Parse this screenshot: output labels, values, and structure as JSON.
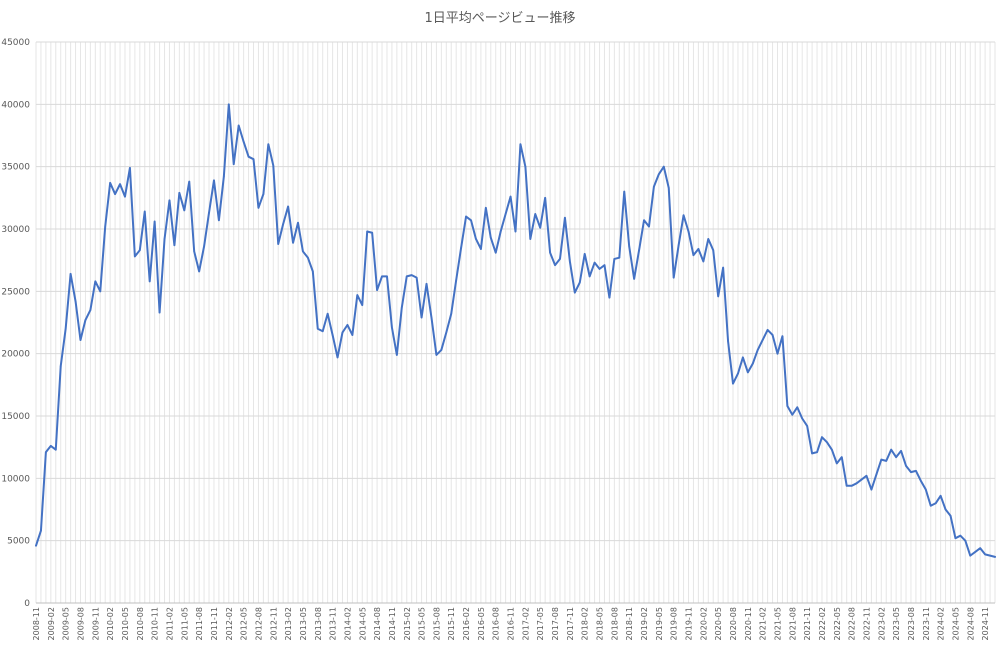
{
  "chart_data": {
    "type": "line",
    "title": "1日平均ページビュー推移",
    "xlabel": "",
    "ylabel": "",
    "ylim": [
      0,
      45000
    ],
    "y_ticks": [
      0,
      5000,
      10000,
      15000,
      20000,
      25000,
      30000,
      35000,
      40000,
      45000
    ],
    "grid": {
      "horizontal": true,
      "vertical": true
    },
    "legend": "none",
    "colors": {
      "series": "#4472c4",
      "grid": "#d9d9d9",
      "text": "#595959"
    },
    "x_start": "2008-11",
    "x_tick_labels": [
      "2008-11",
      "2009-02",
      "2009-05",
      "2009-08",
      "2009-11",
      "2010-02",
      "2010-05",
      "2010-08",
      "2010-11",
      "2011-02",
      "2011-05",
      "2011-08",
      "2011-11",
      "2012-02",
      "2012-05",
      "2012-08",
      "2012-11",
      "2013-02",
      "2013-05",
      "2013-08",
      "2013-11",
      "2014-02",
      "2014-05",
      "2014-08",
      "2014-11",
      "2015-02",
      "2015-05",
      "2015-08",
      "2015-11",
      "2016-02",
      "2016-05",
      "2016-08",
      "2016-11",
      "2017-02",
      "2017-05",
      "2017-08",
      "2017-11",
      "2018-02",
      "2018-05",
      "2018-08",
      "2018-11",
      "2019-02",
      "2019-05",
      "2019-08",
      "2019-11",
      "2020-02",
      "2020-05",
      "2020-08",
      "2020-11",
      "2021-02",
      "2021-05",
      "2021-08",
      "2021-11",
      "2022-02",
      "2022-05",
      "2022-08",
      "2022-11",
      "2023-02",
      "2023-05",
      "2023-08",
      "2023-11",
      "2024-02",
      "2024-05",
      "2024-08",
      "2024-11"
    ],
    "series": [
      {
        "values": [
          4600,
          5800,
          12100,
          12600,
          12300,
          19000,
          22000,
          26400,
          24200,
          21100,
          22700,
          23500,
          25800,
          25000,
          30200,
          33700,
          32800,
          33600,
          32600,
          34900,
          27800,
          28300,
          31400,
          25800,
          30600,
          23300,
          29200,
          32300,
          28700,
          32900,
          31500,
          33800,
          28200,
          26600,
          28600,
          31300,
          33900,
          30700,
          34200,
          40000,
          35200,
          38300,
          37000,
          35800,
          35600,
          31700,
          32800,
          36800,
          35100,
          28800,
          30400,
          31800,
          28900,
          30500,
          28200,
          27700,
          26600,
          22000,
          21800,
          23200,
          21500,
          19700,
          21700,
          22300,
          21500,
          24700,
          23900,
          29800,
          29700,
          25100,
          26200,
          26200,
          22100,
          19900,
          23700,
          26200,
          26300,
          26100,
          22900,
          25600,
          22900,
          19900,
          20300,
          21700,
          23200,
          25900,
          28500,
          31000,
          30700,
          29200,
          28400,
          31700,
          29300,
          28100,
          29800,
          31200,
          32600,
          29800,
          36800,
          35000,
          29200,
          31200,
          30100,
          32500,
          28100,
          27100,
          27600,
          30900,
          27400,
          24900,
          25700,
          28000,
          26200,
          27300,
          26800,
          27100,
          24500,
          27600,
          27700,
          33000,
          28600,
          26000,
          28300,
          30700,
          30200,
          33400,
          34400,
          35000,
          33300,
          26100,
          28700,
          31100,
          29800,
          27900,
          28400,
          27400,
          29200,
          28300,
          24600,
          26900,
          21000,
          17600,
          18400,
          19700,
          18500,
          19200,
          20300,
          21100,
          21900,
          21500,
          20000,
          21400,
          15800,
          15100,
          15700,
          14800,
          14200,
          12000,
          12100,
          13300,
          12900,
          12300,
          11200,
          11700,
          9400,
          9400,
          9600,
          9900,
          10200,
          9100,
          10300,
          11500,
          11400,
          12300,
          11700,
          12200,
          11000,
          10500,
          10600,
          9800,
          9100,
          7800,
          8000,
          8600,
          7500,
          7000,
          5200,
          5400,
          5000,
          3800,
          4100,
          4400,
          3900,
          3800,
          3700
        ]
      }
    ]
  }
}
